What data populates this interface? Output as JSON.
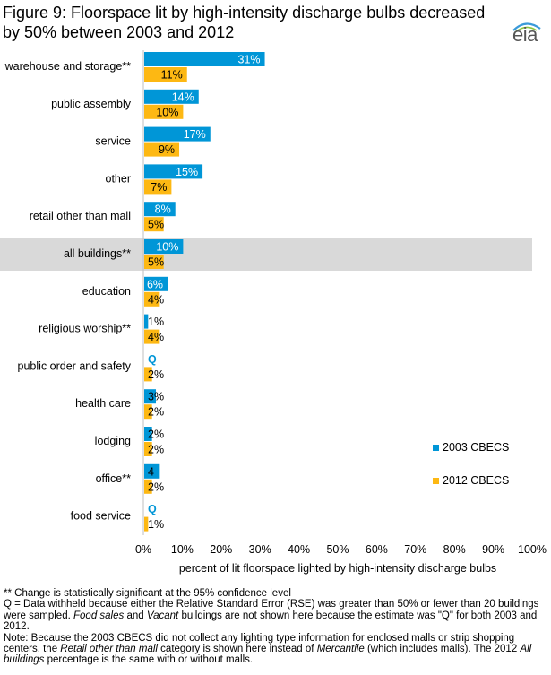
{
  "chart_data": {
    "type": "bar",
    "orientation": "horizontal",
    "title": "Figure 9: Floorspace lit by high-intensity discharge bulbs decreased by 50% between 2003 and 2012",
    "xlabel": "percent of lit floorspace lighted by high-intensity discharge bulbs",
    "xlim": [
      0,
      100
    ],
    "x_ticks": [
      "0%",
      "10%",
      "20%",
      "30%",
      "40%",
      "50%",
      "60%",
      "70%",
      "80%",
      "90%",
      "100%"
    ],
    "highlighted_category": "all buildings**",
    "categories": [
      "warehouse and storage**",
      "public assembly",
      "service",
      "other",
      "retail other than mall",
      "all buildings**",
      "education",
      "religious worship**",
      "public order and safety",
      "health care",
      "lodging",
      "office**",
      "food service"
    ],
    "series": [
      {
        "name": "2003 CBECS",
        "color": "#0096d7",
        "values": [
          31,
          14,
          17,
          15,
          8,
          10,
          6,
          1,
          null,
          3,
          2,
          4,
          null
        ],
        "labels": [
          "31%",
          "14%",
          "17%",
          "15%",
          "8%",
          "10%",
          "6%",
          "1%",
          "Q",
          "3%",
          "2%",
          "4",
          "Q"
        ]
      },
      {
        "name": "2012 CBECS",
        "color": "#fdb813",
        "values": [
          11,
          10,
          9,
          7,
          5,
          5,
          4,
          4,
          2,
          2,
          2,
          2,
          1
        ],
        "labels": [
          "11%",
          "10%",
          "9%",
          "7%",
          "5%",
          "5%",
          "4%",
          "4%",
          "2%",
          "2%",
          "2%",
          "2%",
          "1%"
        ]
      }
    ],
    "legend_position": "bottom-right",
    "grid": false
  },
  "logo": {
    "text": "eia"
  },
  "notes": {
    "line1": "** Change is statistically significant at the 95% confidence level",
    "line2": "Q = Data withheld because either the Relative Standard Error (RSE) was greater than 50% or fewer than 20 buildings were sampled.",
    "line2_italic_a": "Food sales",
    "line2_mid": "and",
    "line2_italic_b": "Vacant",
    "line2_end": "buildings are not shown here because the estimate was \"Q\" for both 2003 and 2012.",
    "line3_start": "Note: Because the 2003 CBECS did not collect any lighting type information for enclosed malls or strip shopping centers, the",
    "line3_italic_a": "Retail other than mall",
    "line3_mid": "category is shown here instead of",
    "line3_italic_b": "Mercantile",
    "line3_mid2": "(which includes malls). The 2012",
    "line3_italic_c": "All buildings",
    "line3_end": "percentage is the same with or without malls."
  }
}
